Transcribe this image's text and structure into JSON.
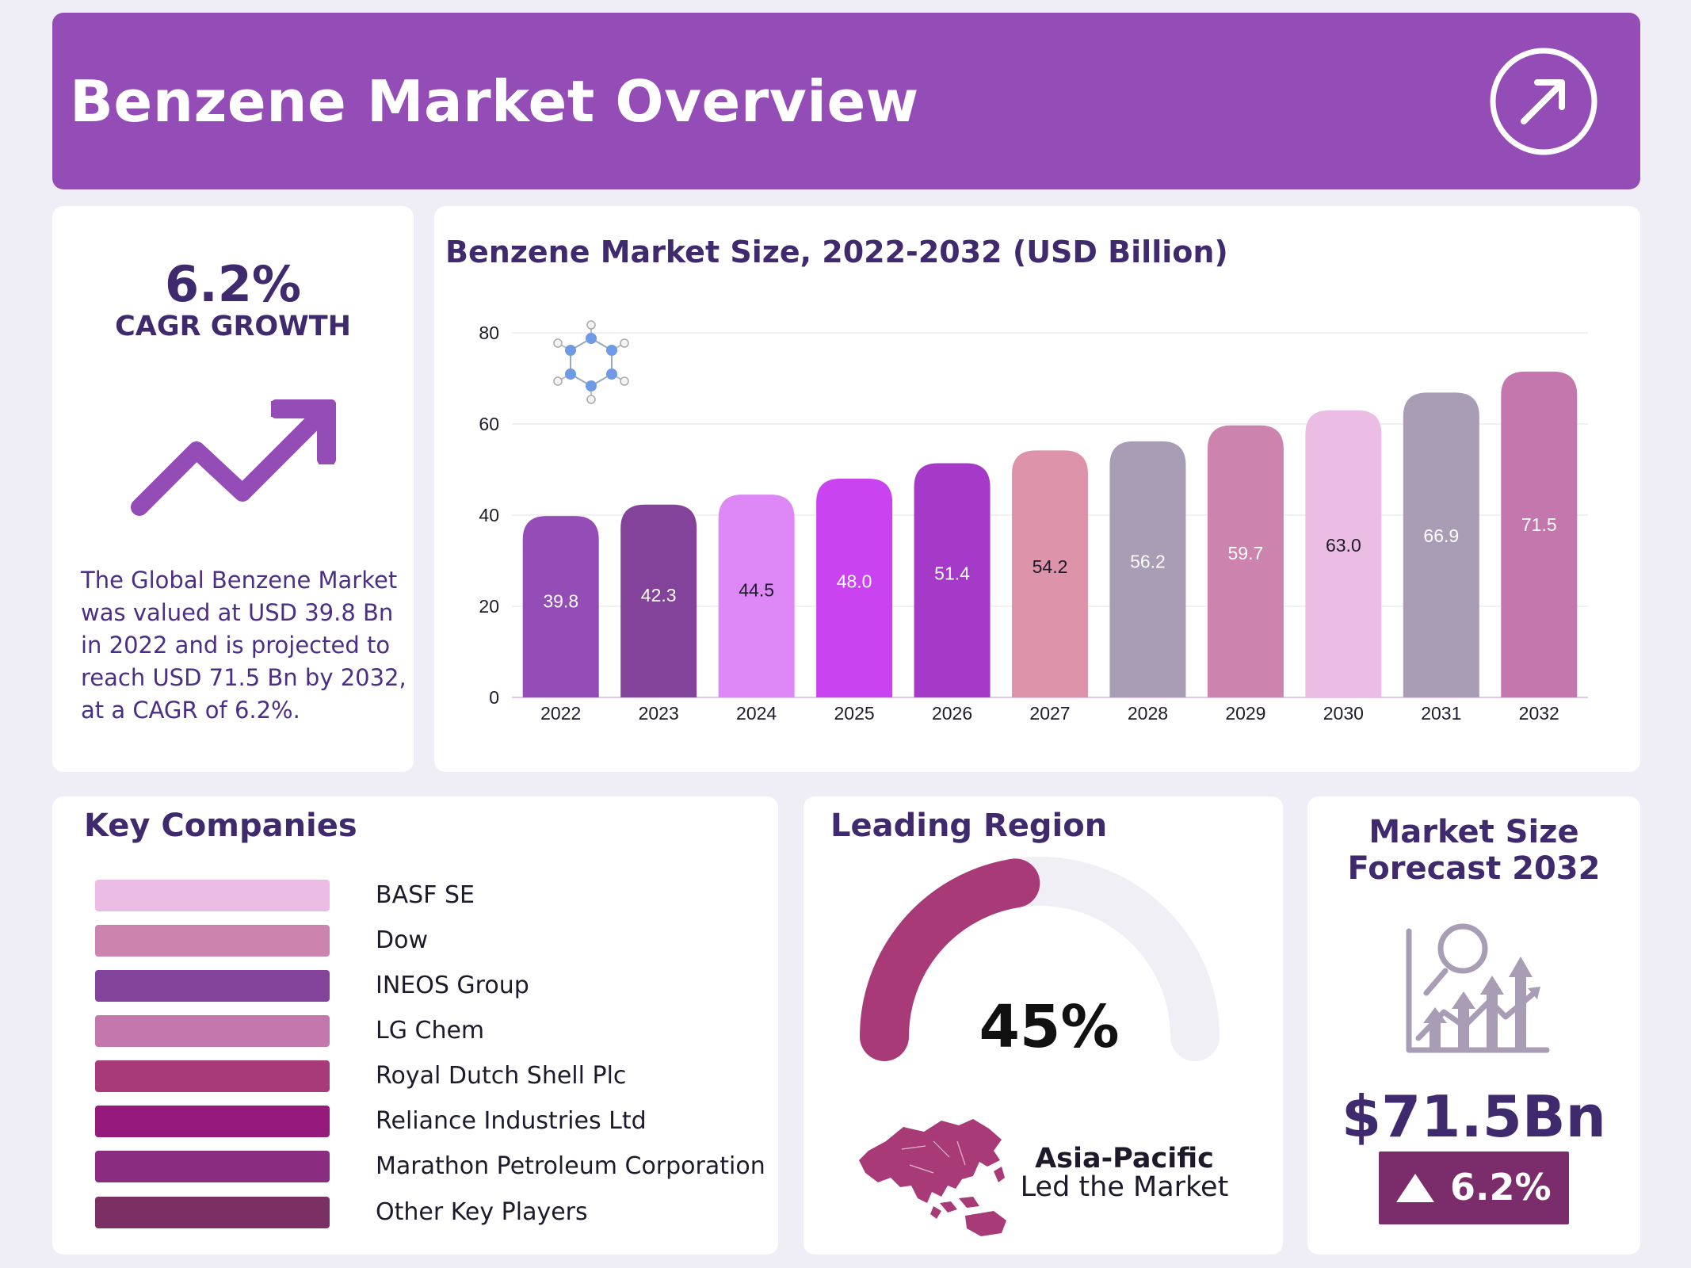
{
  "header": {
    "title": "Benzene Market Overview"
  },
  "cagr": {
    "value": "6.2%",
    "label": "CAGR GROWTH",
    "description": "The Global Benzene Market was valued at USD 39.8 Bn in 2022 and is projected to reach USD 71.5 Bn by 2032, at a CAGR of 6.2%."
  },
  "chart_data": {
    "type": "bar",
    "title": "Benzene Market Size, 2022-2032 (USD Billion)",
    "xlabel": "",
    "ylabel": "",
    "categories": [
      "2022",
      "2023",
      "2024",
      "2025",
      "2026",
      "2027",
      "2028",
      "2029",
      "2030",
      "2031",
      "2032"
    ],
    "values": [
      39.8,
      42.3,
      44.5,
      48.0,
      51.4,
      54.2,
      56.2,
      59.7,
      63.0,
      66.9,
      71.5
    ],
    "value_labels": [
      "39.8",
      "42.3",
      "44.5",
      "48.0",
      "51.4",
      "54.2",
      "56.2",
      "59.7",
      "63.0",
      "66.9",
      "71.5"
    ],
    "bar_colors": [
      "#944db6",
      "#83439b",
      "#de87f6",
      "#c944f0",
      "#a63ac8",
      "#dd94ab",
      "#a89db5",
      "#cc84ae",
      "#ecbde4",
      "#a89db5",
      "#c377ad"
    ],
    "label_colors": [
      "#ffffff",
      "#ffffff",
      "#1e1a2a",
      "#ffffff",
      "#ffffff",
      "#1e1a2a",
      "#ffffff",
      "#ffffff",
      "#1e1a2a",
      "#ffffff",
      "#ffffff"
    ],
    "ylim": [
      0,
      80
    ],
    "yticks": [
      "0",
      "20",
      "40",
      "60",
      "80"
    ],
    "grid": true
  },
  "companies": {
    "title": "Key Companies",
    "items": [
      {
        "name": "BASF SE",
        "color": "#ecbde4"
      },
      {
        "name": "Dow",
        "color": "#cc84ae"
      },
      {
        "name": "INEOS Group",
        "color": "#83439b"
      },
      {
        "name": "LG Chem",
        "color": "#c377ad"
      },
      {
        "name": "Royal Dutch Shell Plc",
        "color": "#a83a78"
      },
      {
        "name": "Reliance Industries Ltd",
        "color": "#951a7c"
      },
      {
        "name": "Marathon Petroleum Corporation",
        "color": "#8a2c80"
      },
      {
        "name": "Other Key Players",
        "color": "#7b3063"
      }
    ]
  },
  "region": {
    "title": "Leading Region",
    "share_value": 45,
    "share_label": "45%",
    "name": "Asia-Pacific",
    "subtitle": "Led the Market",
    "gauge_color": "#a83a78",
    "track_color": "#f0eff5"
  },
  "forecast": {
    "title_line1": "Market Size",
    "title_line2": "Forecast 2032",
    "value": "$71.5Bn",
    "growth": "6.2%"
  },
  "icons": {
    "header": "arrow-up-right-circle-icon",
    "trend": "trending-up-icon",
    "molecule": "benzene-molecule-icon",
    "map": "asia-pacific-map-icon",
    "forecast": "growth-analysis-icon"
  }
}
